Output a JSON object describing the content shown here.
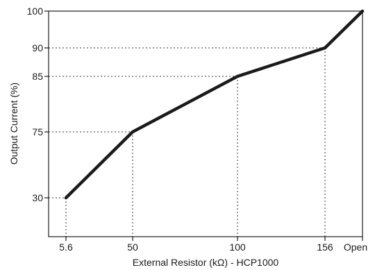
{
  "chart_data": {
    "type": "line",
    "xlabel": "External Resistor (kΩ) - HCP1000",
    "ylabel": "Output Current (%)",
    "x_categories": [
      "5.6",
      "50",
      "100",
      "156",
      "Open"
    ],
    "y_ticks": [
      30,
      75,
      85,
      90,
      100
    ],
    "grid": false,
    "series": [
      {
        "x": [
          "5.6",
          "50",
          "100",
          "156",
          "Open"
        ],
        "values": [
          30,
          75,
          85,
          90,
          100
        ]
      }
    ],
    "guide_lines": "dotted drop lines from each point to both axes",
    "line_color": "#1a1a1a"
  }
}
